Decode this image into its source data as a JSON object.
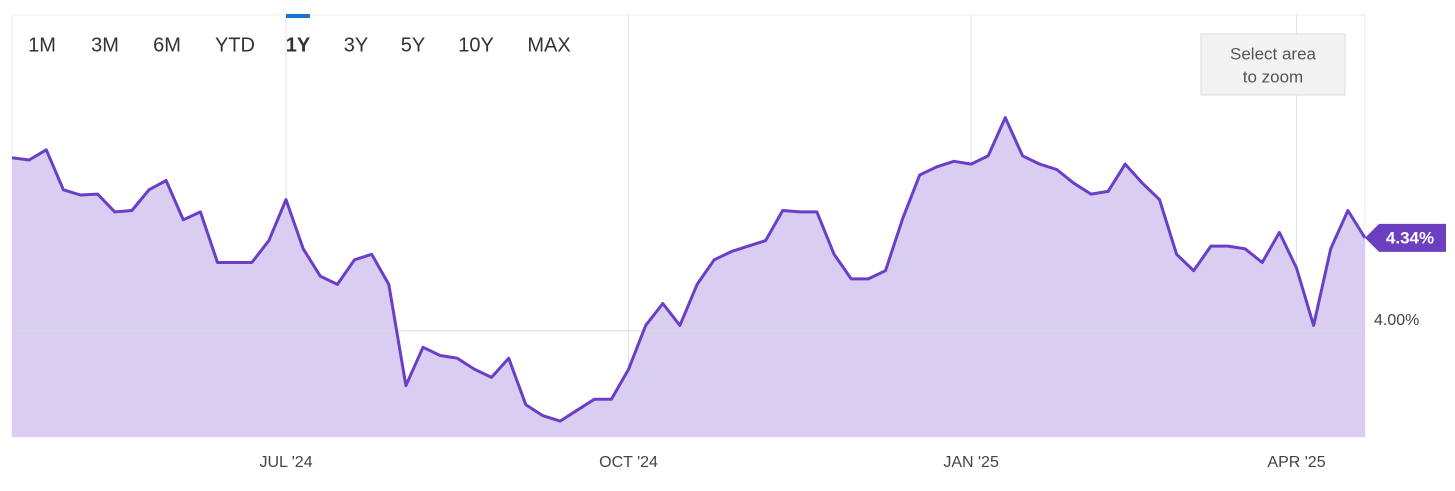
{
  "toolbar": {
    "buttons": [
      "1M",
      "3M",
      "6M",
      "YTD",
      "1Y",
      "3Y",
      "5Y",
      "10Y",
      "MAX"
    ],
    "active": 4,
    "disabled": [
      7,
      8
    ]
  },
  "zoom_hint": [
    "Select area",
    "to zoom"
  ],
  "chart_data": {
    "type": "area",
    "categories": [
      null,
      null,
      null,
      null,
      null,
      null,
      null,
      null,
      null,
      null,
      null,
      null,
      null,
      null,
      null,
      null,
      "JUL '24",
      null,
      null,
      null,
      null,
      null,
      null,
      null,
      null,
      null,
      null,
      null,
      null,
      null,
      null,
      null,
      null,
      null,
      null,
      null,
      "OCT '24",
      null,
      null,
      null,
      null,
      null,
      null,
      null,
      null,
      null,
      null,
      null,
      null,
      null,
      null,
      null,
      null,
      null,
      null,
      null,
      "JAN '25",
      null,
      null,
      null,
      null,
      null,
      null,
      null,
      null,
      null,
      null,
      null,
      null,
      null,
      null,
      null,
      null,
      null,
      null,
      "APR '25",
      null,
      null,
      null,
      null
    ],
    "values": [
      4.633,
      4.625,
      4.662,
      4.516,
      4.497,
      4.5,
      4.435,
      4.44,
      4.516,
      4.55,
      4.406,
      4.435,
      4.25,
      4.25,
      4.25,
      4.33,
      4.48,
      4.3,
      4.2,
      4.17,
      4.26,
      4.28,
      4.17,
      3.8,
      3.94,
      3.91,
      3.9,
      3.86,
      3.83,
      3.9,
      3.73,
      3.69,
      3.67,
      3.71,
      3.75,
      3.75,
      3.86,
      4.02,
      4.1,
      4.02,
      4.17,
      4.26,
      4.29,
      4.31,
      4.33,
      4.44,
      4.435,
      4.435,
      4.28,
      4.19,
      4.19,
      4.22,
      4.41,
      4.57,
      4.6,
      4.62,
      4.61,
      4.64,
      4.78,
      4.64,
      4.61,
      4.59,
      4.54,
      4.5,
      4.51,
      4.61,
      4.54,
      4.48,
      4.28,
      4.22,
      4.31,
      4.31,
      4.3,
      4.25,
      4.36,
      4.23,
      4.02,
      4.3,
      4.44,
      4.34
    ],
    "value_labels": [
      null,
      null,
      null,
      null,
      null,
      null,
      null,
      null,
      null,
      null,
      null,
      null,
      null,
      null,
      null,
      null,
      null,
      null,
      null,
      null,
      null,
      null,
      null,
      null,
      null,
      null,
      null,
      null,
      null,
      null,
      null,
      null,
      null,
      null,
      null,
      null,
      null,
      null,
      null,
      null,
      null,
      null,
      null,
      null,
      null,
      null,
      null,
      null,
      null,
      null,
      null,
      null,
      null,
      null,
      null,
      null,
      null,
      null,
      null,
      null,
      null,
      null,
      null,
      null,
      null,
      null,
      null,
      null,
      null,
      null,
      null,
      null,
      null,
      null,
      null,
      null,
      null,
      null,
      null,
      "4.34%"
    ],
    "color": "#6a3fc8",
    "fill": "#d9cdf1",
    "label_color": "#6b3fc0",
    "ylim": [
      3.612,
      5.155
    ],
    "yticks": [
      {
        "value": 4,
        "label": "4.00%"
      }
    ],
    "grid": true
  }
}
